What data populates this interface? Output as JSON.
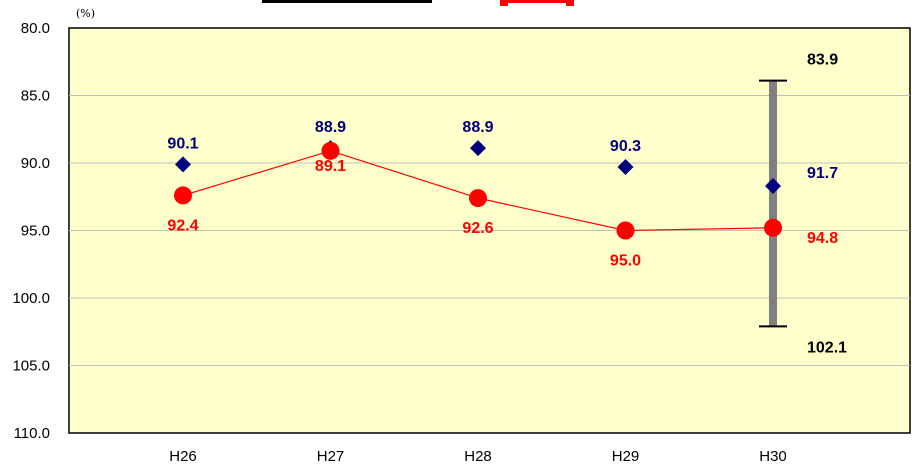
{
  "chart_data": {
    "type": "line",
    "unit_label": "(%)",
    "categories": [
      "H26",
      "H27",
      "H28",
      "H29",
      "H30"
    ],
    "y_axis": {
      "min": 80.0,
      "max": 110.0,
      "step": 5.0,
      "inverted": true,
      "tick_labels": [
        "80.0",
        "85.0",
        "90.0",
        "95.0",
        "100.0",
        "105.0",
        "110.0"
      ]
    },
    "grid": true,
    "series": [
      {
        "marker": "diamond",
        "color": "#00007f",
        "values": [
          90.1,
          88.9,
          88.9,
          90.3,
          91.7
        ],
        "value_labels": [
          "90.1",
          "88.9",
          "88.9",
          "90.3",
          "91.7"
        ]
      },
      {
        "marker": "circle",
        "line": true,
        "color": "#ff0000",
        "values": [
          92.4,
          89.1,
          92.6,
          95.0,
          94.8
        ],
        "value_labels": [
          "92.4",
          "89.1",
          "92.6",
          "95.0",
          "94.8"
        ]
      }
    ],
    "range_bar": {
      "category": "H30",
      "low": 83.9,
      "high": 102.1,
      "low_label": "83.9",
      "high_label": "102.1",
      "color": "#808080"
    },
    "colors": {
      "plot_background": "#ffffcc",
      "gridline": "#c0c0c0",
      "axis": "#000000",
      "title_fragment": "#ff0000"
    }
  }
}
